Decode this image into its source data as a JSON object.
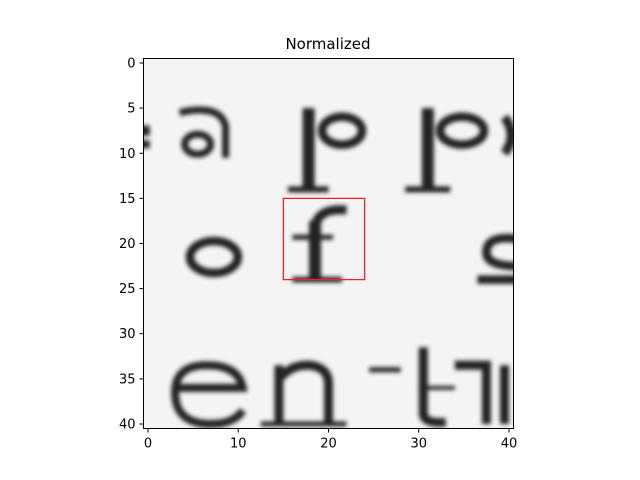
{
  "chart_data": {
    "type": "heatmap",
    "title": "Normalized",
    "xlabel": "",
    "ylabel": "",
    "xlim": [
      -0.5,
      40.5
    ],
    "ylim": [
      40.5,
      -0.5
    ],
    "x_ticks": [
      0,
      10,
      20,
      30,
      40
    ],
    "y_ticks": [
      0,
      5,
      10,
      15,
      20,
      25,
      30,
      35,
      40
    ],
    "x_tick_labels": [
      "0",
      "10",
      "20",
      "30",
      "40"
    ],
    "y_tick_labels": [
      "0",
      "5",
      "10",
      "15",
      "20",
      "25",
      "30",
      "35",
      "40"
    ],
    "image_content": "grayscale scanned text patch showing fragments 'app' (top), 'of' (middle), 'ent' (bottom)",
    "highlight_box": {
      "x0": 15,
      "y0": 15,
      "x1": 24,
      "y1": 24,
      "color": "#e8262b"
    },
    "grid": false
  }
}
